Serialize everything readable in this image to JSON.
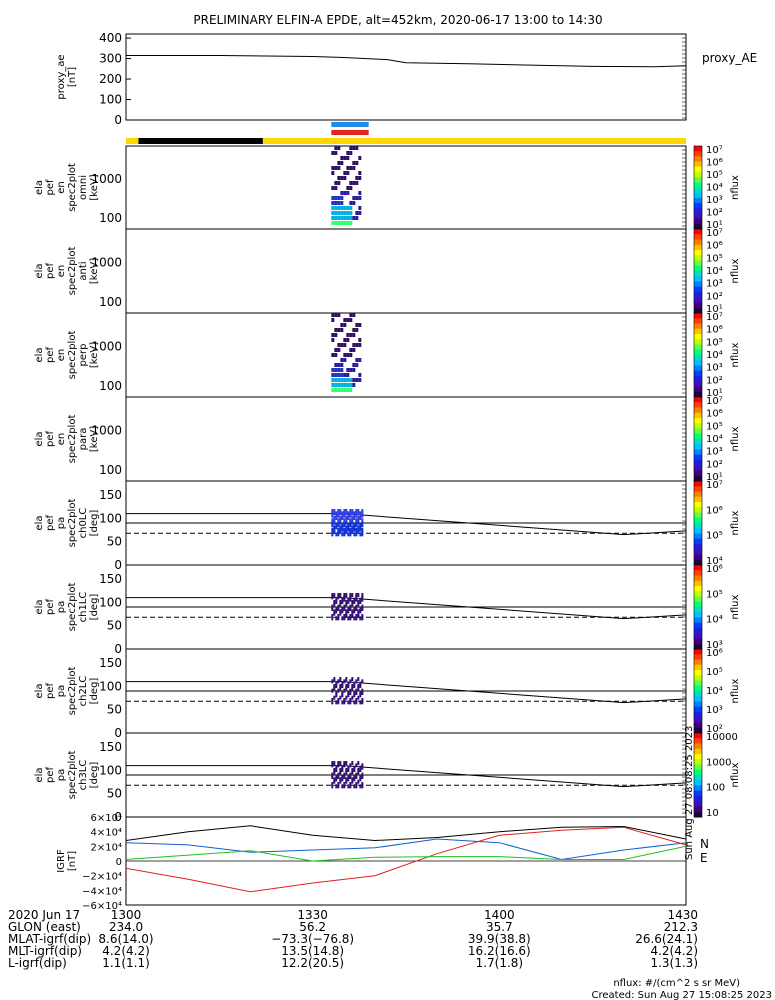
{
  "title": "PRELIMINARY ELFIN-A EPDE, alt=452km, 2020-06-17 13:00 to 14:30",
  "colors": {
    "black": "#000000",
    "yellow": "#ffd800",
    "blue": "#1e8ce6",
    "red": "#e8231c",
    "geo_x": "#000000",
    "geo_y": "#1060d0",
    "geo_z": "#20c020",
    "geo_e": "#e02020"
  },
  "chart_data": [
    {
      "type": "line",
      "id": "proxy_ae",
      "ylabel": [
        "proxy_ae",
        "[nT]"
      ],
      "legend": "proxy_AE",
      "yticks": [
        "400",
        "300",
        "200",
        "100",
        "0"
      ],
      "ylim": [
        0,
        420
      ],
      "x": [
        "13:00",
        "13:15",
        "13:30",
        "13:35",
        "13:42",
        "13:45",
        "13:55",
        "14:05",
        "14:15",
        "14:25",
        "14:30"
      ],
      "values": [
        315,
        315,
        310,
        305,
        295,
        280,
        275,
        268,
        262,
        260,
        265
      ]
    },
    {
      "type": "bar",
      "id": "status_bar",
      "segments": [
        {
          "from": "13:00",
          "to": "13:02",
          "color": "yellow"
        },
        {
          "from": "13:02",
          "to": "13:22",
          "color": "black"
        },
        {
          "from": "13:22",
          "to": "14:30",
          "color": "yellow"
        }
      ],
      "markers": [
        {
          "from": "13:33",
          "to": "13:39",
          "color": "blue"
        },
        {
          "from": "13:33",
          "to": "13:39",
          "color": "red"
        }
      ]
    },
    {
      "type": "heatmap",
      "id": "en_omni",
      "ylabel": [
        "ela",
        "pef",
        "en",
        "spec2plot",
        "omni",
        "[keV]"
      ],
      "yticks": [
        "1000",
        "100"
      ],
      "colorbar": {
        "label": "nflux",
        "ticks": [
          "10⁷",
          "10⁶",
          "10⁵",
          "10⁴",
          "10³",
          "10²",
          "10¹"
        ]
      }
    },
    {
      "type": "heatmap",
      "id": "en_anti",
      "ylabel": [
        "ela",
        "pef",
        "en",
        "spec2plot",
        "anti",
        "[keV]"
      ],
      "yticks": [
        "1000",
        "100"
      ],
      "colorbar": {
        "label": "nflux",
        "ticks": [
          "10⁷",
          "10⁶",
          "10⁵",
          "10⁴",
          "10³",
          "10²",
          "10¹"
        ]
      }
    },
    {
      "type": "heatmap",
      "id": "en_perp",
      "ylabel": [
        "ela",
        "pef",
        "en",
        "spec2plot",
        "perp",
        "[keV]"
      ],
      "yticks": [
        "1000",
        "100"
      ],
      "colorbar": {
        "label": "nflux",
        "ticks": [
          "10⁷",
          "10⁶",
          "10⁵",
          "10⁴",
          "10³",
          "10²",
          "10¹"
        ]
      }
    },
    {
      "type": "heatmap",
      "id": "en_para",
      "ylabel": [
        "ela",
        "pef",
        "en",
        "spec2plot",
        "para",
        "[keV]"
      ],
      "yticks": [
        "1000",
        "100"
      ],
      "colorbar": {
        "label": "nflux",
        "ticks": [
          "10⁷",
          "10⁶",
          "10⁵",
          "10⁴",
          "10³",
          "10²",
          "10¹"
        ]
      }
    },
    {
      "type": "heatmap",
      "id": "pa_ch0",
      "ylabel": [
        "ela",
        "pef",
        "pa",
        "spec2plot",
        "ch0LC",
        "[deg]"
      ],
      "yticks": [
        "150",
        "100",
        "50",
        "0"
      ],
      "ylim": [
        0,
        180
      ],
      "colorbar": {
        "label": "nflux",
        "ticks": [
          "10⁷",
          "10⁶",
          "10⁵",
          "10⁴"
        ]
      }
    },
    {
      "type": "heatmap",
      "id": "pa_ch1",
      "ylabel": [
        "ela",
        "pef",
        "pa",
        "spec2plot",
        "ch1LC",
        "[deg]"
      ],
      "yticks": [
        "150",
        "100",
        "50",
        "0"
      ],
      "ylim": [
        0,
        180
      ],
      "colorbar": {
        "label": "nflux",
        "ticks": [
          "10⁶",
          "10⁵",
          "10⁴",
          "10³"
        ]
      }
    },
    {
      "type": "heatmap",
      "id": "pa_ch2",
      "ylabel": [
        "ela",
        "pef",
        "pa",
        "spec2plot",
        "ch2LC",
        "[deg]"
      ],
      "yticks": [
        "150",
        "100",
        "50",
        "0"
      ],
      "ylim": [
        0,
        180
      ],
      "colorbar": {
        "label": "nflux",
        "ticks": [
          "10⁶",
          "10⁵",
          "10⁴",
          "10³",
          "10²"
        ]
      }
    },
    {
      "type": "heatmap",
      "id": "pa_ch3",
      "ylabel": [
        "ela",
        "pef",
        "pa",
        "spec2plot",
        "ch3LC",
        "[deg]"
      ],
      "yticks": [
        "150",
        "100",
        "50",
        "0"
      ],
      "ylim": [
        0,
        180
      ],
      "colorbar": {
        "label": "nflux",
        "ticks": [
          "10000",
          "1000",
          "100",
          "10"
        ]
      }
    },
    {
      "type": "line",
      "id": "igrf",
      "ylabel": [
        "IGRF",
        "[nT]"
      ],
      "yticks": [
        "6×10⁴",
        "4×10⁴",
        "2×10⁴",
        "0",
        "−2×10⁴",
        "−4×10⁴",
        "−6×10⁴"
      ],
      "ylim": [
        -60000,
        60000
      ],
      "legend": [
        "N",
        "E"
      ],
      "x": [
        "13:00",
        "13:10",
        "13:20",
        "13:30",
        "13:40",
        "13:50",
        "14:00",
        "14:10",
        "14:20",
        "14:30"
      ],
      "series": [
        {
          "color": "black",
          "values": [
            28000,
            40000,
            48000,
            35000,
            28000,
            32000,
            40000,
            46000,
            47000,
            30000
          ]
        },
        {
          "color": "blue",
          "values": [
            25000,
            22000,
            12000,
            15000,
            18000,
            30000,
            25000,
            2000,
            15000,
            25000
          ]
        },
        {
          "color": "red",
          "values": [
            -10000,
            -25000,
            -42000,
            -30000,
            -20000,
            10000,
            35000,
            42000,
            46000,
            22000
          ]
        },
        {
          "color": "green",
          "values": [
            2000,
            8000,
            14000,
            0,
            5000,
            6000,
            6000,
            2000,
            2000,
            20000
          ]
        }
      ]
    }
  ],
  "footer": {
    "labels": [
      "2020 Jun 17",
      "GLON (east)",
      "MLAT-igrf(dip)",
      "MLT-igrf(dip)",
      "L-igrf(dip)"
    ],
    "columns": [
      {
        "time": "1300",
        "values": [
          "234.0",
          "8.6(14.0)",
          "4.2(4.2)",
          "1.1(1.1)"
        ]
      },
      {
        "time": "1330",
        "values": [
          "56.2",
          "−73.3(−76.8)",
          "13.5(14.8)",
          "12.2(20.5)"
        ]
      },
      {
        "time": "1400",
        "values": [
          "35.7",
          "39.9(38.8)",
          "16.2(16.6)",
          "1.7(1.8)"
        ]
      },
      {
        "time": "1430",
        "values": [
          "212.3",
          "26.6(24.1)",
          "4.2(4.2)",
          "1.3(1.3)"
        ]
      }
    ],
    "units_note": "nflux: #/(cm^2 s sr MeV)",
    "created": "Created: Sun Aug 27 15:08:25 2023",
    "side_stamp": "Sun Aug 27 08:08:25 2023"
  }
}
